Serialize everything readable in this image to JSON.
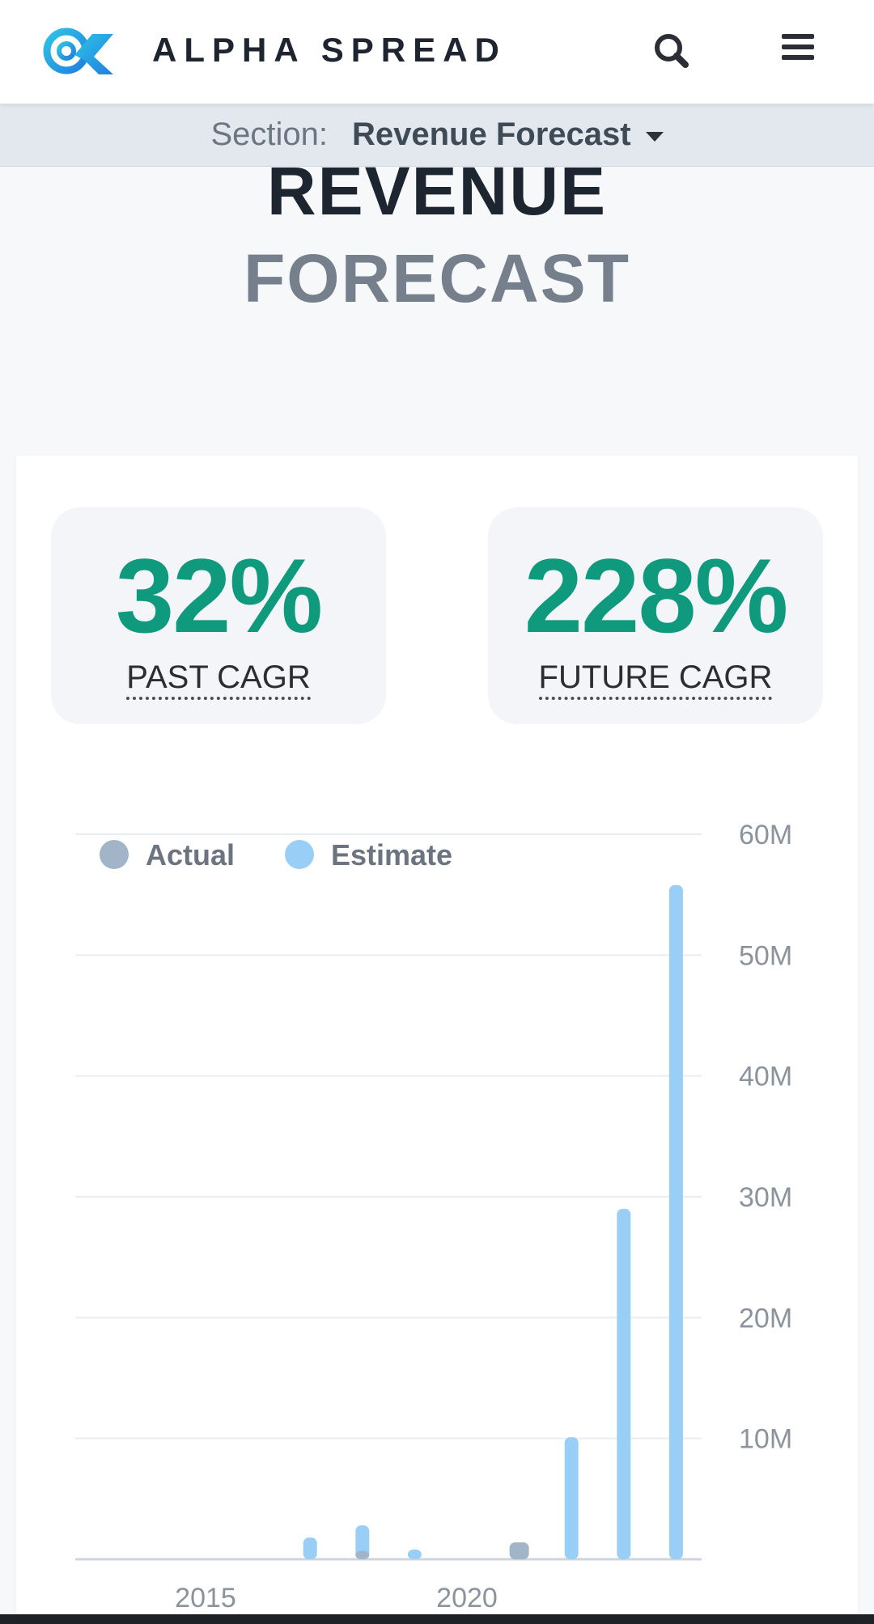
{
  "header": {
    "brand": "ALPHA SPREAD",
    "logo_icon": "alpha-spread-logo",
    "search_icon": "search-icon",
    "menu_icon": "hamburger-menu-icon"
  },
  "section_bar": {
    "label": "Section:",
    "value": "Revenue Forecast"
  },
  "page_title": {
    "line1": "REVENUE",
    "line2": "FORECAST"
  },
  "stats": {
    "past": {
      "value": "32%",
      "label": "PAST CAGR"
    },
    "future": {
      "value": "228%",
      "label": "FUTURE CAGR"
    }
  },
  "colors": {
    "accent_green": "#0f9a7e",
    "actual": "#a2b4c8",
    "estimate": "#99cff7"
  },
  "chart_data": {
    "type": "bar",
    "legend": [
      "Actual",
      "Estimate"
    ],
    "legend_position": "top-left",
    "y_axis_position": "right",
    "y_ticks": [
      "10M",
      "20M",
      "30M",
      "40M",
      "50M",
      "60M"
    ],
    "ylim": [
      0,
      60000000
    ],
    "x_ticks": [
      {
        "label": "2015",
        "year": 2015
      },
      {
        "label": "2020",
        "year": 2020
      }
    ],
    "grid": true,
    "series": [
      {
        "name": "Actual",
        "color": "#a2b4c8",
        "points": [
          {
            "year": 2018,
            "value": 700000
          },
          {
            "year": 2021,
            "value": 1400000
          }
        ]
      },
      {
        "name": "Estimate",
        "color": "#99cff7",
        "points": [
          {
            "year": 2017,
            "value": 1800000
          },
          {
            "year": 2018,
            "value": 2800000
          },
          {
            "year": 2019,
            "value": 800000
          },
          {
            "year": 2022,
            "value": 10100000
          },
          {
            "year": 2023,
            "value": 29000000
          },
          {
            "year": 2024,
            "value": 55800000
          }
        ]
      }
    ]
  }
}
